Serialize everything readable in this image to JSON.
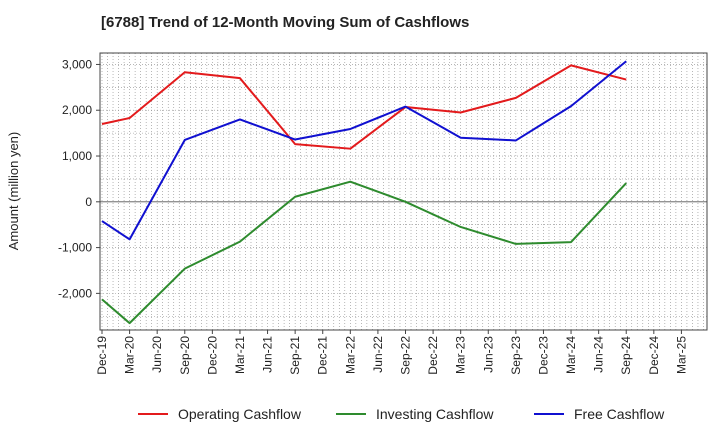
{
  "chart_data": {
    "type": "line",
    "title": "[6788]  Trend of 12-Month Moving Sum of Cashflows",
    "ylabel": "Amount (million yen)",
    "xlabel": "",
    "ylim": [
      -2800,
      3250
    ],
    "yticks": [
      3000,
      2000,
      1000,
      0,
      -1000,
      -2000
    ],
    "ytick_labels": [
      "3,000",
      "2,000",
      "1,000",
      "0",
      "-1,000",
      "-2,000"
    ],
    "categories": [
      "Dec-19",
      "Mar-20",
      "Jun-20",
      "Sep-20",
      "Dec-20",
      "Mar-21",
      "Jun-21",
      "Sep-21",
      "Dec-21",
      "Mar-22",
      "Jun-22",
      "Sep-22",
      "Dec-22",
      "Mar-23",
      "Jun-23",
      "Sep-23",
      "Dec-23",
      "Mar-24",
      "Jun-24",
      "Sep-24",
      "Dec-24",
      "Mar-25"
    ],
    "grid": true,
    "legend_position": "bottom",
    "series": [
      {
        "name": "Operating Cashflow",
        "color": "#e31a1c",
        "values": [
          1700,
          1830,
          null,
          2830,
          null,
          2700,
          null,
          1260,
          null,
          1160,
          null,
          2070,
          null,
          1950,
          null,
          2270,
          null,
          2980,
          null,
          2670,
          null,
          null
        ]
      },
      {
        "name": "Investing Cashflow",
        "color": "#2e8b2e",
        "values": [
          -2130,
          -2650,
          null,
          -1460,
          null,
          -870,
          null,
          110,
          null,
          440,
          null,
          0,
          null,
          -550,
          null,
          -920,
          null,
          -880,
          null,
          410,
          null,
          null
        ]
      },
      {
        "name": "Free Cashflow",
        "color": "#1010d0",
        "values": [
          -420,
          -820,
          null,
          1350,
          null,
          1800,
          null,
          1360,
          null,
          1590,
          null,
          2080,
          null,
          1400,
          null,
          1340,
          null,
          2090,
          null,
          3070,
          null,
          null
        ]
      }
    ]
  }
}
